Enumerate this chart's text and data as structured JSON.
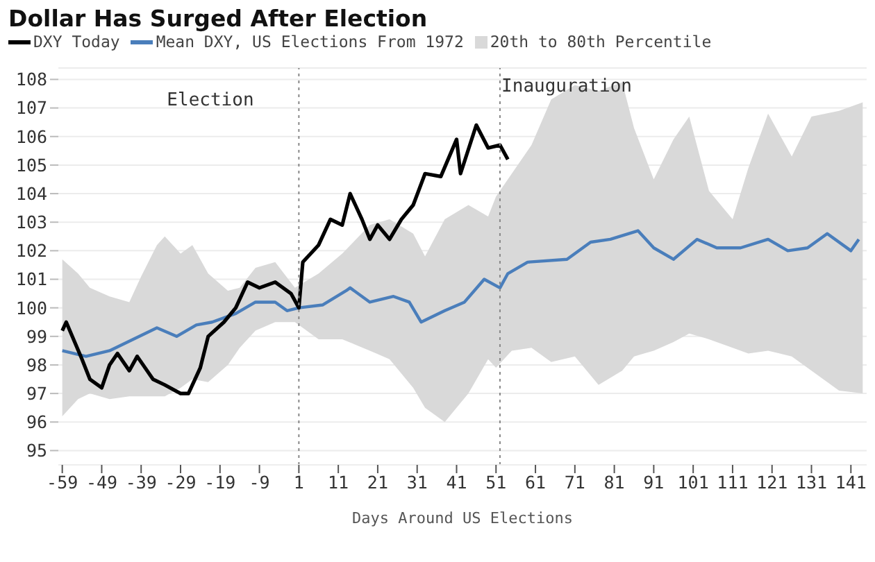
{
  "chart_data": {
    "type": "line",
    "title": "Dollar Has Surged After Election",
    "xlabel": "Days Around US Elections",
    "xlim": [
      -60,
      145
    ],
    "xticks": [
      -59,
      -49,
      -39,
      -29,
      -19,
      -9,
      1,
      11,
      21,
      31,
      41,
      51,
      61,
      71,
      81,
      91,
      101,
      111,
      121,
      131,
      141
    ],
    "ylim": [
      94.5,
      108.4
    ],
    "yticks": [
      95,
      96,
      97,
      98,
      99,
      100,
      101,
      102,
      103,
      104,
      105,
      106,
      107,
      108
    ],
    "grid": "y",
    "legend": "top left",
    "line_style": "solid",
    "marker": "none",
    "ref_lines": [
      {
        "axis": "x",
        "value": 1,
        "label": "Election",
        "line_style": "dotted",
        "color": "#888888"
      },
      {
        "axis": "x",
        "value": 52,
        "label": "Inauguration",
        "line_style": "dotted",
        "color": "#888888"
      }
    ],
    "series": [
      {
        "name": "20th to 80th Percentile",
        "type": "area",
        "color": "#d9d9d9",
        "values": [
          null,
          null,
          null,
          null,
          null,
          null,
          null,
          null,
          null,
          null,
          null,
          null,
          null,
          null,
          null,
          null,
          null,
          null,
          null,
          null,
          null,
          null,
          null,
          null,
          null,
          null,
          null,
          null,
          null,
          null,
          null,
          null,
          null,
          null,
          null,
          null,
          null,
          null,
          null,
          null,
          null,
          null,
          null,
          null
        ],
        "x": [
          -59,
          -55,
          -52,
          -47,
          -42,
          -39,
          -35,
          -33,
          -29,
          -26,
          -22,
          -17,
          -14,
          -10,
          -5,
          0,
          6,
          12,
          19,
          24,
          30,
          33,
          38,
          44,
          49,
          51,
          55,
          60,
          65,
          71,
          77,
          83,
          86,
          91,
          96,
          100,
          105,
          111,
          115,
          120,
          126,
          131,
          138,
          144
        ],
        "lower": [
          96.2,
          96.8,
          97.0,
          96.8,
          96.9,
          96.9,
          96.9,
          96.9,
          97.2,
          97.5,
          97.4,
          98.0,
          98.6,
          99.2,
          99.5,
          99.5,
          98.9,
          98.9,
          98.5,
          98.2,
          97.2,
          96.5,
          96.0,
          97.0,
          98.2,
          97.9,
          98.5,
          98.6,
          98.1,
          98.3,
          97.3,
          97.8,
          98.3,
          98.5,
          98.8,
          99.1,
          98.9,
          98.6,
          98.4,
          98.5,
          98.3,
          97.8,
          97.1,
          97.0
        ],
        "upper": [
          101.7,
          101.2,
          100.7,
          100.4,
          100.2,
          101.1,
          102.2,
          102.5,
          101.9,
          102.2,
          101.2,
          100.6,
          100.7,
          101.4,
          101.6,
          100.7,
          101.2,
          101.9,
          102.9,
          103.1,
          102.6,
          101.8,
          103.1,
          103.6,
          103.2,
          103.9,
          104.7,
          105.7,
          107.3,
          107.8,
          107.6,
          107.9,
          106.3,
          104.5,
          105.9,
          106.7,
          104.1,
          103.1,
          104.9,
          106.8,
          105.3,
          106.7,
          106.9,
          107.2
        ]
      },
      {
        "name": "Mean DXY, US Elections From 1972",
        "color": "#4a7ebb",
        "x": [
          -59,
          -53,
          -47,
          -41,
          -35,
          -30,
          -25,
          -21,
          -15,
          -10,
          -5,
          -2,
          1,
          7,
          13,
          14,
          19,
          25,
          29,
          32,
          38,
          43,
          48,
          52,
          54,
          59,
          69,
          75,
          80,
          87,
          91,
          96,
          102,
          107,
          113,
          120,
          125,
          130,
          135,
          141,
          143
        ],
        "values": [
          98.5,
          98.3,
          98.5,
          98.9,
          99.3,
          99.0,
          99.4,
          99.5,
          99.8,
          100.2,
          100.2,
          99.9,
          100.0,
          100.1,
          100.6,
          100.7,
          100.2,
          100.4,
          100.2,
          99.5,
          99.9,
          100.2,
          101.0,
          100.7,
          101.2,
          101.6,
          101.7,
          102.3,
          102.4,
          102.7,
          102.1,
          101.7,
          102.4,
          102.1,
          102.1,
          102.4,
          102.0,
          102.1,
          102.6,
          102.0,
          102.4
        ]
      },
      {
        "name": "DXY Today",
        "color": "#000000",
        "x": [
          -59,
          -58,
          -54,
          -52,
          -49,
          -47,
          -45,
          -42,
          -40,
          -36,
          -33,
          -29,
          -27,
          -24,
          -22,
          -18,
          -15,
          -12,
          -9,
          -5,
          -1,
          1,
          2,
          6,
          9,
          12,
          14,
          17,
          19,
          21,
          24,
          27,
          30,
          33,
          37,
          41,
          42,
          46,
          49,
          52,
          54
        ],
        "values": [
          99.2,
          99.5,
          98.2,
          97.5,
          97.2,
          98.0,
          98.4,
          97.8,
          98.3,
          97.5,
          97.3,
          97.0,
          97.0,
          97.9,
          99.0,
          99.5,
          100.0,
          100.9,
          100.7,
          100.9,
          100.5,
          100.0,
          101.6,
          102.2,
          103.1,
          102.9,
          104.0,
          103.1,
          102.4,
          102.9,
          102.4,
          103.1,
          103.6,
          104.7,
          104.6,
          105.9,
          104.7,
          106.4,
          105.6,
          105.7,
          105.2
        ]
      }
    ]
  }
}
